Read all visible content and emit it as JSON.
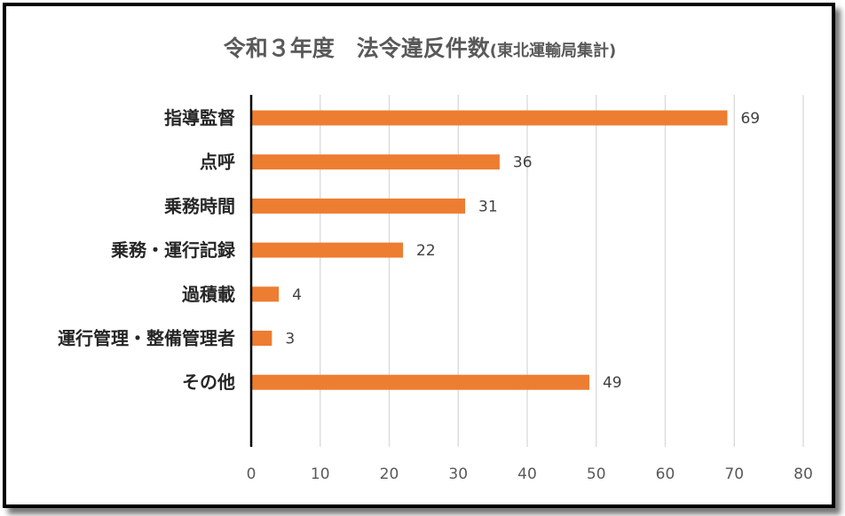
{
  "chart_data": {
    "type": "bar",
    "orientation": "horizontal",
    "title": "令和３年度　法令違反件数",
    "subtitle": "(東北運輸局集計)",
    "categories": [
      "指導監督",
      "点呼",
      "乗務時間",
      "乗務・運行記録",
      "過積載",
      "運行管理・整備管理者",
      "その他"
    ],
    "values": [
      69,
      36,
      31,
      22,
      4,
      3,
      49
    ],
    "xlim": [
      0,
      80
    ],
    "xticks": [
      0,
      10,
      20,
      30,
      40,
      50,
      60,
      70,
      80
    ],
    "grid": true,
    "data_labels": true,
    "colors": {
      "bar": "#ED7D31",
      "grid": "#D9D9D9",
      "axis": "#000000"
    }
  }
}
